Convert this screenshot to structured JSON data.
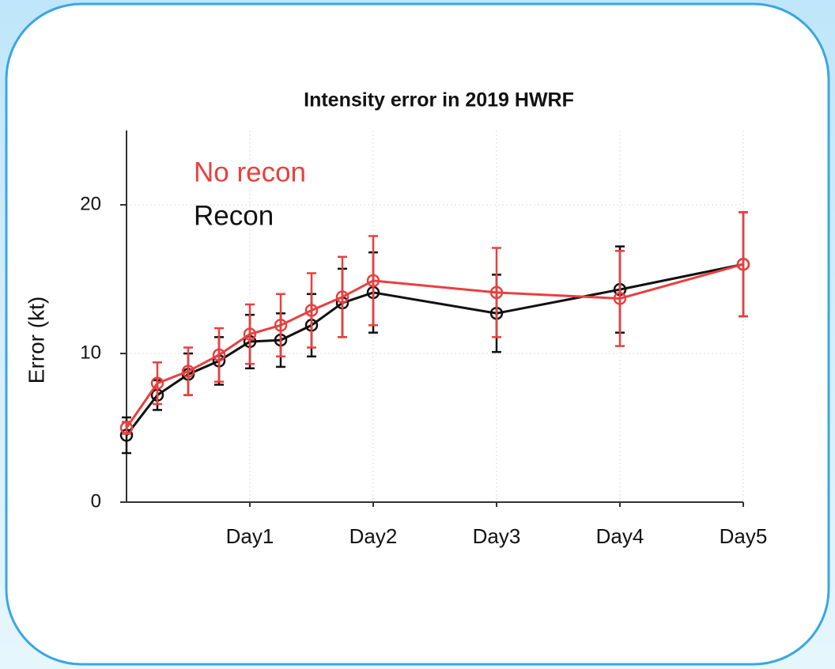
{
  "chart_data": {
    "type": "line",
    "title": "Intensity error in 2019 HWRF",
    "y_label": "Error (kt)",
    "xlim": [
      0,
      120
    ],
    "ylim": [
      0,
      25
    ],
    "xticks": [
      {
        "value": 24,
        "label": "Day1"
      },
      {
        "value": 48,
        "label": "Day2"
      },
      {
        "value": 72,
        "label": "Day3"
      },
      {
        "value": 96,
        "label": "Day4"
      },
      {
        "value": 120,
        "label": "Day5"
      }
    ],
    "yticks": [
      0,
      10,
      20
    ],
    "grid": true,
    "legend": "upper left",
    "series": [
      {
        "name": "No recon",
        "color": "#e8403f",
        "x": [
          0,
          6,
          12,
          18,
          24,
          30,
          36,
          42,
          48,
          72,
          96,
          120
        ],
        "values": [
          5.0,
          8.0,
          8.8,
          9.9,
          11.3,
          11.9,
          12.9,
          13.8,
          14.9,
          14.1,
          13.7,
          16.0
        ],
        "errors": [
          0.4,
          1.4,
          1.6,
          1.8,
          2.0,
          2.1,
          2.5,
          2.7,
          3.0,
          3.0,
          3.2,
          3.5
        ]
      },
      {
        "name": "Recon",
        "color": "#111111",
        "x": [
          0,
          6,
          12,
          18,
          24,
          30,
          36,
          42,
          48,
          72,
          96,
          120
        ],
        "values": [
          4.5,
          7.2,
          8.6,
          9.5,
          10.8,
          10.9,
          11.9,
          13.4,
          14.1,
          12.7,
          14.3,
          16.0
        ],
        "errors": [
          1.2,
          1.0,
          1.4,
          1.6,
          1.8,
          1.8,
          2.1,
          2.3,
          2.7,
          2.6,
          2.9,
          3.5
        ]
      }
    ]
  }
}
